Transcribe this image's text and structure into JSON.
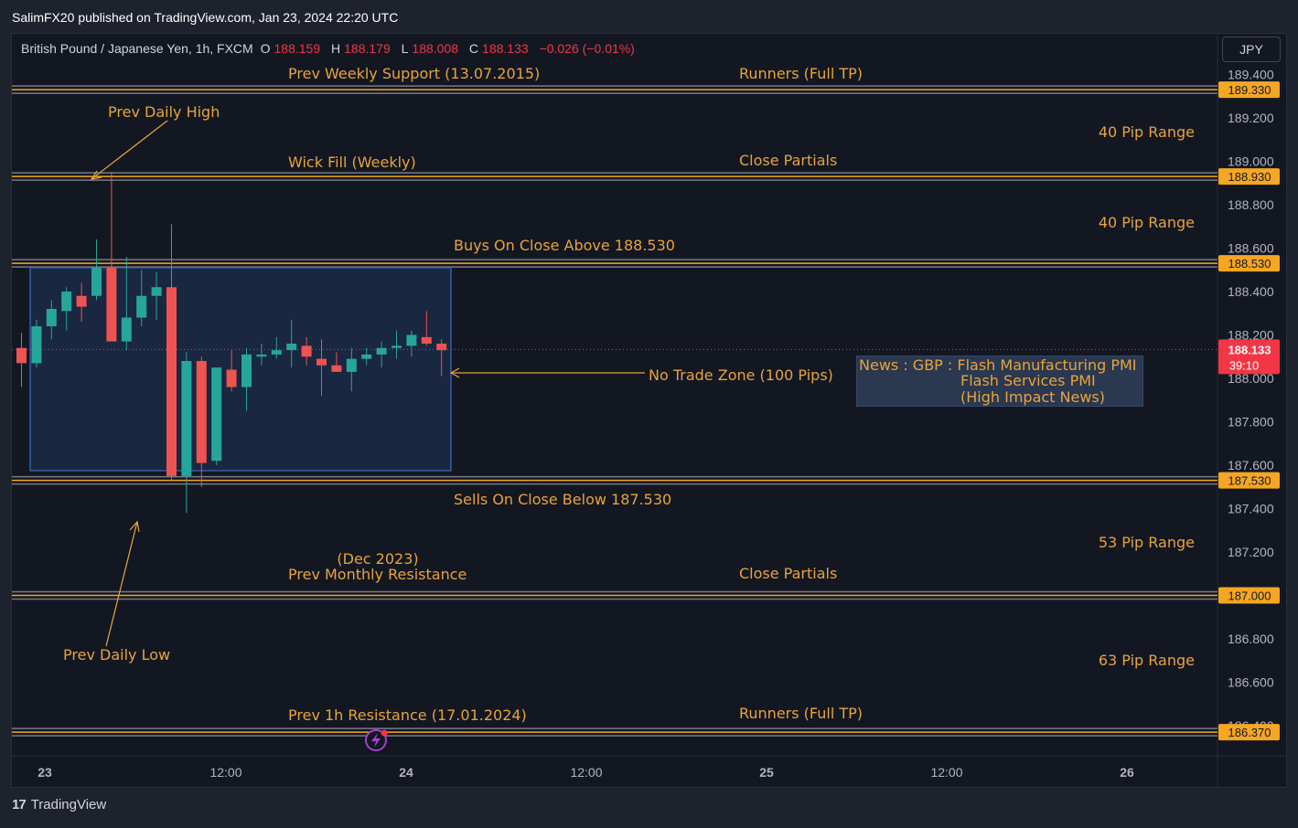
{
  "header": {
    "published": "SalimFX20 published on TradingView.com, Jan 23, 2024 22:20 UTC"
  },
  "symbol": {
    "title": "British Pound / Japanese Yen, 1h, FXCM",
    "o_label": "O",
    "o_value": "188.159",
    "h_label": "H",
    "h_value": "188.179",
    "l_label": "L",
    "l_value": "188.008",
    "c_label": "C",
    "c_value": "188.133",
    "change": "−0.026 (−0.01%)"
  },
  "currency_button": "JPY",
  "footer": {
    "brand": "TradingView"
  },
  "colors": {
    "bull": "#26a69a",
    "bear": "#ef5350",
    "accent": "#e8a33d",
    "price_tag": "#f5a623",
    "current": "#f23645"
  },
  "y_axis": {
    "ticks": [
      "189.400",
      "189.200",
      "189.000",
      "188.800",
      "188.600",
      "188.400",
      "188.200",
      "188.000",
      "187.800",
      "187.600",
      "187.400",
      "187.200",
      "187.000",
      "186.800",
      "186.600",
      "186.400"
    ]
  },
  "x_axis": {
    "ticks": [
      "23",
      "12:00",
      "24",
      "12:00",
      "25",
      "12:00",
      "26"
    ]
  },
  "price_tags": [
    "189.330",
    "188.930",
    "188.530",
    "187.530",
    "187.000",
    "186.370"
  ],
  "current_price": {
    "price": "188.133",
    "countdown": "39:10"
  },
  "annotations": {
    "prev_weekly_support": "Prev Weekly Support (13.07.2015)",
    "runners_top": "Runners (Full TP)",
    "prev_daily_high": "Prev Daily High",
    "range_40_a": "40 Pip Range",
    "wick_fill": "Wick Fill (Weekly)",
    "close_partials_top": "Close Partials",
    "range_40_b": "40 Pip Range",
    "buys_on_close": "Buys On Close Above 188.530",
    "no_trade_zone": "No Trade Zone (100 Pips)",
    "sells_on_close": "Sells On Close Below 187.530",
    "range_53": "53 Pip Range",
    "dec_2023": "(Dec 2023)",
    "prev_monthly_resistance": "Prev Monthly Resistance",
    "close_partials_bottom": "Close Partials",
    "prev_daily_low": "Prev Daily Low",
    "range_63": "63 Pip Range",
    "prev_1h_resistance": "Prev 1h Resistance (17.01.2024)",
    "runners_bottom": "Runners (Full TP)"
  },
  "news": {
    "line1": "News : GBP : Flash Manufacturing PMI",
    "line2": "Flash Services PMI",
    "line3": "(High Impact News)"
  },
  "chart_data": {
    "type": "candlestick",
    "ylim": [
      186.3,
      189.45
    ],
    "levels": [
      189.33,
      188.93,
      188.53,
      187.53,
      187.0,
      186.37
    ],
    "candles": [
      {
        "o": 188.14,
        "h": 188.21,
        "l": 187.96,
        "c": 188.07
      },
      {
        "o": 188.07,
        "h": 188.27,
        "l": 188.05,
        "c": 188.24
      },
      {
        "o": 188.24,
        "h": 188.36,
        "l": 188.18,
        "c": 188.32
      },
      {
        "o": 188.31,
        "h": 188.42,
        "l": 188.22,
        "c": 188.4
      },
      {
        "o": 188.38,
        "h": 188.44,
        "l": 188.26,
        "c": 188.33
      },
      {
        "o": 188.38,
        "h": 188.64,
        "l": 188.36,
        "c": 188.51
      },
      {
        "o": 188.51,
        "h": 188.95,
        "l": 188.18,
        "c": 188.17
      },
      {
        "o": 188.17,
        "h": 188.56,
        "l": 188.13,
        "c": 188.28
      },
      {
        "o": 188.28,
        "h": 188.5,
        "l": 188.24,
        "c": 188.38
      },
      {
        "o": 188.38,
        "h": 188.49,
        "l": 188.27,
        "c": 188.42
      },
      {
        "o": 188.42,
        "h": 188.71,
        "l": 187.53,
        "c": 187.55
      },
      {
        "o": 187.55,
        "h": 188.12,
        "l": 187.38,
        "c": 188.08
      },
      {
        "o": 188.08,
        "h": 188.1,
        "l": 187.5,
        "c": 187.61
      },
      {
        "o": 187.62,
        "h": 188.04,
        "l": 187.6,
        "c": 188.05
      },
      {
        "o": 188.04,
        "h": 188.13,
        "l": 187.94,
        "c": 187.96
      },
      {
        "o": 187.96,
        "h": 188.14,
        "l": 187.85,
        "c": 188.11
      },
      {
        "o": 188.1,
        "h": 188.16,
        "l": 188.06,
        "c": 188.11
      },
      {
        "o": 188.11,
        "h": 188.19,
        "l": 188.09,
        "c": 188.13
      },
      {
        "o": 188.13,
        "h": 188.27,
        "l": 188.05,
        "c": 188.16
      },
      {
        "o": 188.15,
        "h": 188.19,
        "l": 188.06,
        "c": 188.1
      },
      {
        "o": 188.09,
        "h": 188.18,
        "l": 187.92,
        "c": 188.06
      },
      {
        "o": 188.06,
        "h": 188.12,
        "l": 188.03,
        "c": 188.03
      },
      {
        "o": 188.03,
        "h": 188.14,
        "l": 187.94,
        "c": 188.09
      },
      {
        "o": 188.09,
        "h": 188.14,
        "l": 188.06,
        "c": 188.11
      },
      {
        "o": 188.11,
        "h": 188.17,
        "l": 188.05,
        "c": 188.14
      },
      {
        "o": 188.14,
        "h": 188.22,
        "l": 188.09,
        "c": 188.15
      },
      {
        "o": 188.15,
        "h": 188.22,
        "l": 188.1,
        "c": 188.2
      },
      {
        "o": 188.19,
        "h": 188.31,
        "l": 188.15,
        "c": 188.16
      },
      {
        "o": 188.16,
        "h": 188.18,
        "l": 188.01,
        "c": 188.13
      }
    ]
  }
}
